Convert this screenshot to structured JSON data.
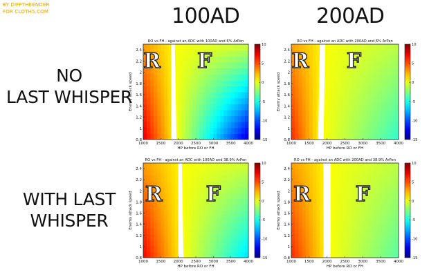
{
  "credit": [
    "BY DIFFTHEENDER",
    "FOR CLOTH5.COM"
  ],
  "column_headers": [
    "100AD",
    "200AD"
  ],
  "row_headers": [
    [
      "NO",
      "LAST WHISPER"
    ],
    [
      "WITH LAST",
      "WHISPER"
    ]
  ],
  "colors": {
    "credit": "#e0a100",
    "region_letter_fill": "#ffffff",
    "region_letter_stroke": "#222222"
  },
  "colormap": "jet",
  "chart_data": [
    {
      "type": "heatmap",
      "title": "RO vs FH - against an ADC with 100AD and 6% ArPen",
      "xlabel": "HP before RO or FH",
      "ylabel": "Enemy attack speed",
      "xlim": [
        1000,
        4000
      ],
      "ylim": [
        0.8,
        2.5
      ],
      "x_ticks": [
        1000,
        1500,
        2000,
        2500,
        3000,
        3500,
        4000
      ],
      "y_ticks": [
        0.8,
        1,
        1.2,
        1.4,
        1.6,
        1.8,
        2,
        2.2,
        2.4
      ],
      "colorbar": {
        "min": -15,
        "max": 10,
        "ticks": [
          10,
          5,
          0,
          -5,
          -10,
          -15
        ]
      },
      "boundary_hp": {
        "at_min_speed": 1850,
        "at_max_speed": 1800
      },
      "gap_hp": {
        "at_min_speed": 1950,
        "at_max_speed": 1900
      },
      "corner_values": {
        "low_hp_low_speed": 7.5,
        "low_hp_high_speed": 3.0,
        "gap_value": 0.5,
        "high_hp_high_speed": -0.5,
        "high_hp_low_speed": -13.0
      },
      "regions": [
        {
          "label": "R",
          "hp": 1250,
          "speed": 2.08
        },
        {
          "label": "F",
          "hp": 2750,
          "speed": 2.08
        }
      ]
    },
    {
      "type": "heatmap",
      "title": "RO vs FH - against an ADC with 200AD and 6% ArPen",
      "xlabel": "HP before RO or FH",
      "ylabel": "Enemy attack speed",
      "xlim": [
        1000,
        4000
      ],
      "ylim": [
        0.8,
        2.5
      ],
      "x_ticks": [
        1000,
        1500,
        2000,
        2500,
        3000,
        3500,
        4000
      ],
      "y_ticks": [
        0.8,
        1,
        1.2,
        1.4,
        1.6,
        1.8,
        2,
        2.2,
        2.4
      ],
      "colorbar": {
        "min": -15,
        "max": 10,
        "ticks": [
          10,
          5,
          0,
          -5,
          -10,
          -15
        ]
      },
      "boundary_hp": {
        "at_min_speed": 1750,
        "at_max_speed": 1800
      },
      "gap_hp": {
        "at_min_speed": 1900,
        "at_max_speed": 1950
      },
      "corner_values": {
        "low_hp_low_speed": 6.0,
        "low_hp_high_speed": 3.0,
        "gap_value": 0.5,
        "high_hp_high_speed": -1.0,
        "high_hp_low_speed": -4.5
      },
      "regions": [
        {
          "label": "R",
          "hp": 1250,
          "speed": 2.08
        },
        {
          "label": "F",
          "hp": 2750,
          "speed": 2.08
        }
      ]
    },
    {
      "type": "heatmap",
      "title": "RO vs FH - against an ADC with 100AD and 38.9% ArPen",
      "xlabel": "HP before RO or FH",
      "ylabel": "Enemy attack speed",
      "xlim": [
        1000,
        4000
      ],
      "ylim": [
        0.8,
        2.5
      ],
      "x_ticks": [
        1000,
        1500,
        2000,
        2500,
        3000,
        3500,
        4000
      ],
      "y_ticks": [
        0.8,
        1,
        1.2,
        1.4,
        1.6,
        1.8,
        2,
        2.2,
        2.4
      ],
      "colorbar": {
        "min": -15,
        "max": 10,
        "ticks": [
          10,
          5,
          0,
          -5,
          -10,
          -15
        ]
      },
      "boundary_hp": {
        "at_min_speed": 2050,
        "at_max_speed": 2000
      },
      "gap_hp": {
        "at_min_speed": 2150,
        "at_max_speed": 2100
      },
      "corner_values": {
        "low_hp_low_speed": 7.0,
        "low_hp_high_speed": 3.0,
        "gap_value": 0.5,
        "high_hp_high_speed": -0.5,
        "high_hp_low_speed": -6.5
      },
      "regions": [
        {
          "label": "R",
          "hp": 1300,
          "speed": 1.82
        },
        {
          "label": "F",
          "hp": 3000,
          "speed": 1.82
        }
      ]
    },
    {
      "type": "heatmap",
      "title": "RO vs FH - against an ADC with 200AD and 38.9% ArPen",
      "xlabel": "HP before RO or FH",
      "ylabel": "Enemy attack speed",
      "xlim": [
        1000,
        4000
      ],
      "ylim": [
        0.8,
        2.5
      ],
      "x_ticks": [
        1000,
        1500,
        2000,
        2500,
        3000,
        3500,
        4000
      ],
      "y_ticks": [
        0.8,
        1,
        1.2,
        1.4,
        1.6,
        1.8,
        2,
        2.2,
        2.4
      ],
      "colorbar": {
        "min": -15,
        "max": 10,
        "ticks": [
          10,
          5,
          0,
          -5,
          -10,
          -15
        ]
      },
      "boundary_hp": {
        "at_min_speed": 1950,
        "at_max_speed": 1900
      },
      "gap_hp": {
        "at_min_speed": 2100,
        "at_max_speed": 2050
      },
      "corner_values": {
        "low_hp_low_speed": 6.0,
        "low_hp_high_speed": 3.0,
        "gap_value": 0.5,
        "high_hp_high_speed": -1.0,
        "high_hp_low_speed": -3.5
      },
      "regions": [
        {
          "label": "R",
          "hp": 1300,
          "speed": 1.82
        },
        {
          "label": "F",
          "hp": 3000,
          "speed": 1.82
        }
      ]
    }
  ]
}
